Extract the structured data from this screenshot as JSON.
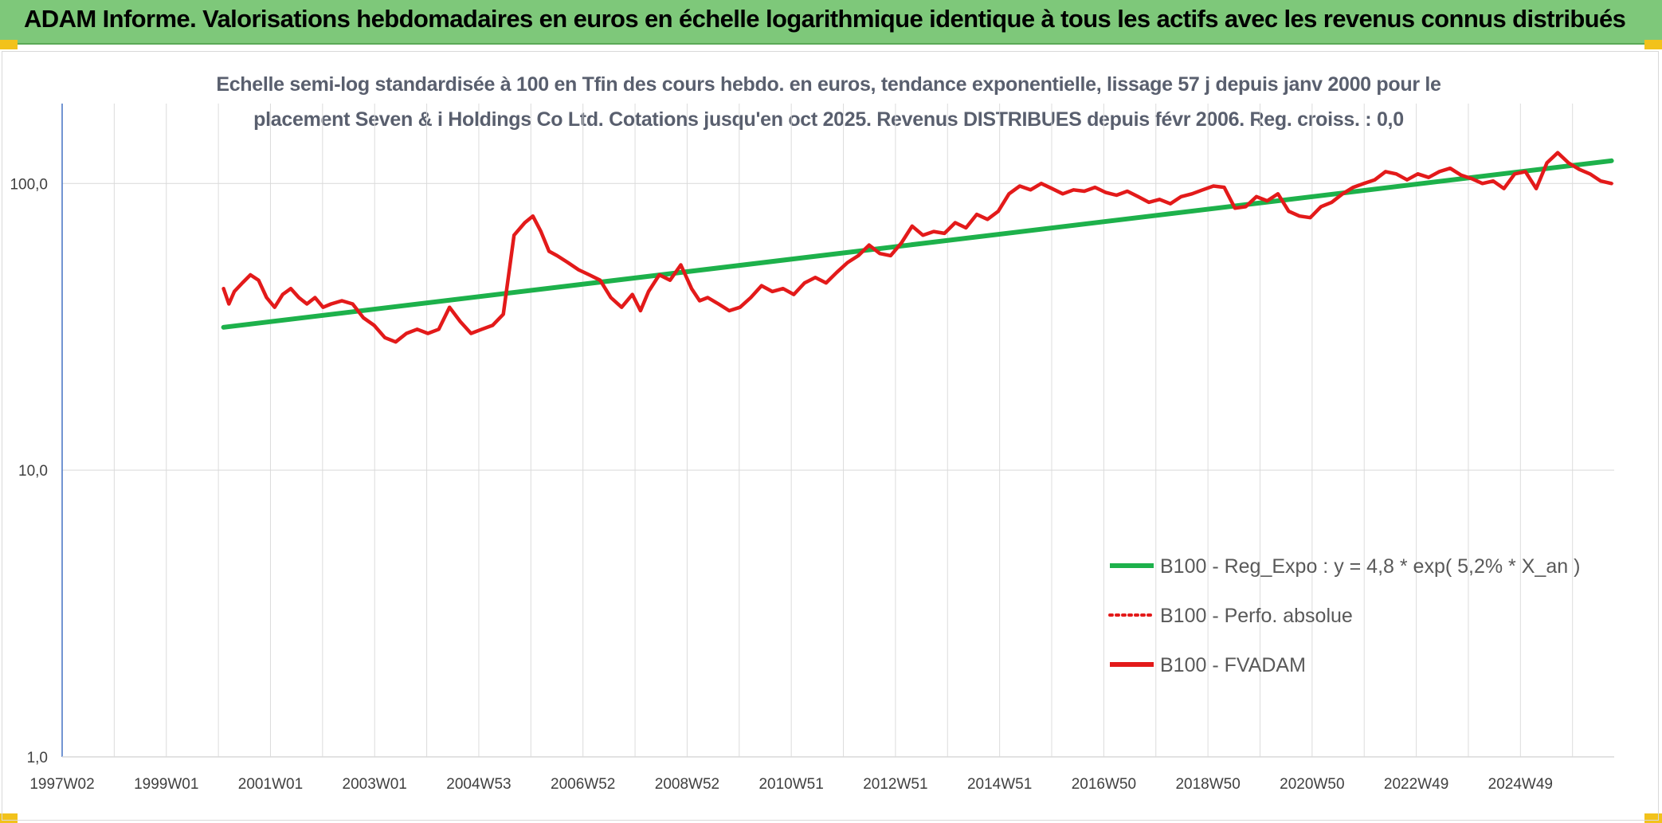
{
  "header": {
    "title": "ADAM Informe. Valorisations hebdomadaires en euros en échelle logarithmique identique à tous les actifs avec les revenus connus distribués"
  },
  "chart_data": {
    "type": "line",
    "subtitle_line1": "Echelle semi-log standardisée à 100 en Tfin des cours hebdo. en euros, tendance exponentielle, lissage 57 j depuis janv 2000 pour le",
    "subtitle_line2": "placement Seven & i Holdings Co Ltd. Cotations jusqu'en oct 2025. Revenus DISTRIBUES depuis févr 2006. Reg. croiss. : 0,0",
    "y_scale": "log",
    "ylim": [
      1,
      190
    ],
    "y_ticks": [
      "1,0",
      "10,0",
      "100,0"
    ],
    "y_tick_values": [
      1,
      10,
      100
    ],
    "x_tick_labels": [
      "1997W02",
      "1999W01",
      "2001W01",
      "2003W01",
      "2004W53",
      "2006W52",
      "2008W52",
      "2010W51",
      "2012W51",
      "2014W51",
      "2016W50",
      "2018W50",
      "2020W50",
      "2022W49",
      "2024W49"
    ],
    "x_range_years": [
      1997.0,
      2025.85
    ],
    "grid": true,
    "legend_position": "bottom-right",
    "series": [
      {
        "name": "B100 - Reg_Expo : y = 4,8 * exp( 5,2% *  X_an )",
        "color": "#1db14b",
        "style": "solid",
        "x": [
          2000.0,
          2025.8
        ],
        "values": [
          31.5,
          120.0
        ]
      },
      {
        "name": "B100 - Perfo. absolue",
        "color": "#e31a1a",
        "style": "dotted",
        "x": [],
        "values": []
      },
      {
        "name": "B100 - FVADAM",
        "color": "#e31a1a",
        "style": "solid",
        "x": [
          2000.0,
          2000.1,
          2000.2,
          2000.35,
          2000.5,
          2000.65,
          2000.8,
          2000.95,
          2001.1,
          2001.25,
          2001.4,
          2001.55,
          2001.7,
          2001.85,
          2002.0,
          2002.2,
          2002.4,
          2002.6,
          2002.8,
          2003.0,
          2003.2,
          2003.4,
          2003.6,
          2003.8,
          2004.0,
          2004.2,
          2004.4,
          2004.6,
          2004.8,
          2005.0,
          2005.2,
          2005.4,
          2005.6,
          2005.75,
          2005.9,
          2006.05,
          2006.2,
          2006.4,
          2006.6,
          2006.8,
          2007.0,
          2007.2,
          2007.4,
          2007.6,
          2007.75,
          2007.9,
          2008.1,
          2008.3,
          2008.5,
          2008.7,
          2008.85,
          2009.0,
          2009.2,
          2009.4,
          2009.6,
          2009.8,
          2010.0,
          2010.2,
          2010.4,
          2010.6,
          2010.8,
          2011.0,
          2011.2,
          2011.4,
          2011.6,
          2011.8,
          2012.0,
          2012.2,
          2012.4,
          2012.6,
          2012.8,
          2013.0,
          2013.2,
          2013.4,
          2013.6,
          2013.8,
          2014.0,
          2014.2,
          2014.4,
          2014.6,
          2014.8,
          2015.0,
          2015.2,
          2015.4,
          2015.6,
          2015.8,
          2016.0,
          2016.2,
          2016.4,
          2016.6,
          2016.8,
          2017.0,
          2017.2,
          2017.4,
          2017.6,
          2017.8,
          2018.0,
          2018.2,
          2018.4,
          2018.6,
          2018.8,
          2019.0,
          2019.2,
          2019.4,
          2019.6,
          2019.8,
          2020.0,
          2020.2,
          2020.4,
          2020.6,
          2020.8,
          2021.0,
          2021.2,
          2021.4,
          2021.6,
          2021.8,
          2022.0,
          2022.2,
          2022.4,
          2022.6,
          2022.8,
          2023.0,
          2023.2,
          2023.4,
          2023.6,
          2023.8,
          2024.0,
          2024.2,
          2024.4,
          2024.6,
          2024.8,
          2025.0,
          2025.2,
          2025.4,
          2025.6,
          2025.8
        ],
        "values": [
          43,
          38,
          42,
          45,
          48,
          46,
          40,
          37,
          41,
          43,
          40,
          38,
          40,
          37,
          38,
          39,
          38,
          34,
          32,
          29,
          28,
          30,
          31,
          30,
          31,
          37,
          33,
          30,
          31,
          32,
          35,
          66,
          73,
          77,
          68,
          58,
          56,
          53,
          50,
          48,
          46,
          40,
          37,
          41,
          36,
          42,
          48,
          46,
          52,
          43,
          39,
          40,
          38,
          36,
          37,
          40,
          44,
          42,
          43,
          41,
          45,
          47,
          45,
          49,
          53,
          56,
          61,
          57,
          56,
          62,
          71,
          66,
          68,
          67,
          73,
          70,
          78,
          75,
          80,
          92,
          98,
          95,
          100,
          96,
          92,
          95,
          94,
          97,
          93,
          91,
          94,
          90,
          86,
          88,
          85,
          90,
          92,
          95,
          98,
          97,
          82,
          83,
          90,
          87,
          92,
          80,
          77,
          76,
          83,
          86,
          92,
          97,
          100,
          103,
          110,
          108,
          103,
          108,
          105,
          110,
          113,
          107,
          104,
          100,
          102,
          96,
          108,
          110,
          96,
          118,
          128,
          118,
          112,
          108,
          102,
          100
        ]
      }
    ]
  }
}
